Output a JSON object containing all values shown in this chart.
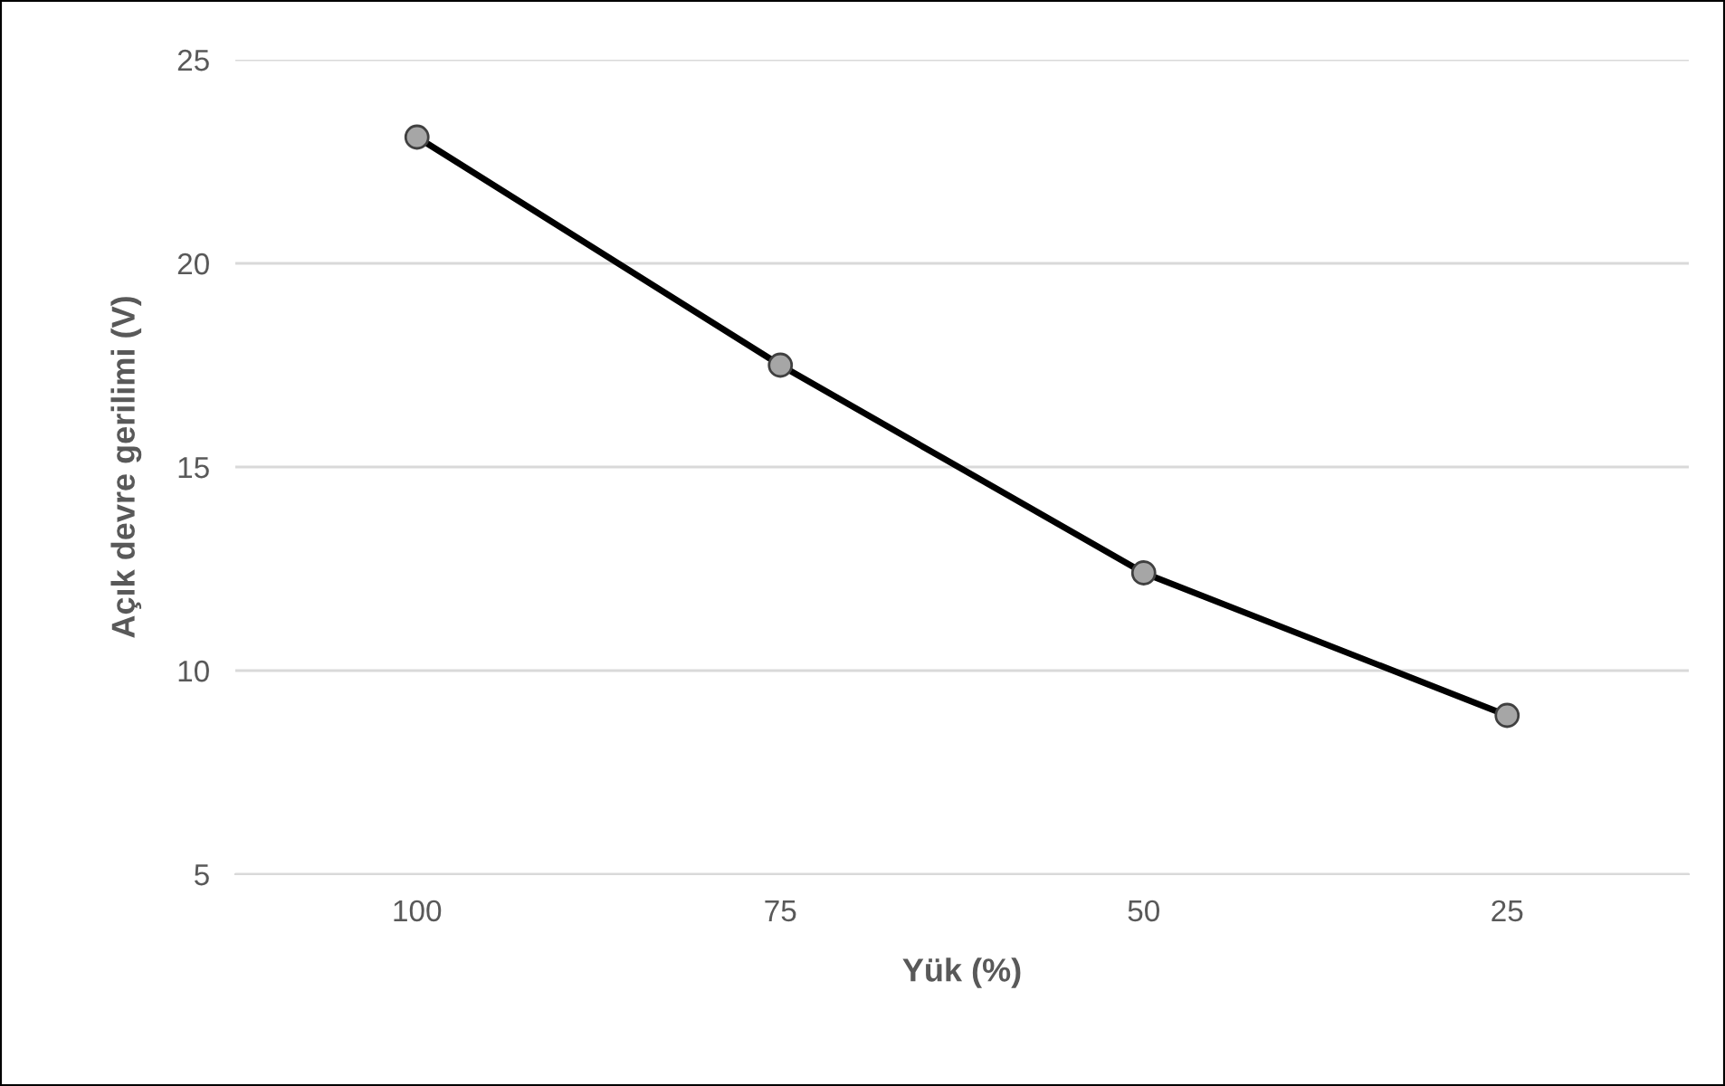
{
  "chart_data": {
    "type": "line",
    "xlabel": "Yük (%)",
    "ylabel": "Açık devre gerilimi (V)",
    "categories": [
      "100",
      "75",
      "50",
      "25"
    ],
    "series": [
      {
        "color": "#000000",
        "values": [
          23.1,
          17.5,
          12.4,
          8.9
        ]
      }
    ],
    "ylim": [
      5,
      25
    ],
    "yticks": [
      5,
      10,
      15,
      20,
      25
    ],
    "grid": "y",
    "marker": "circle",
    "line_style": "solid",
    "legend": false
  }
}
